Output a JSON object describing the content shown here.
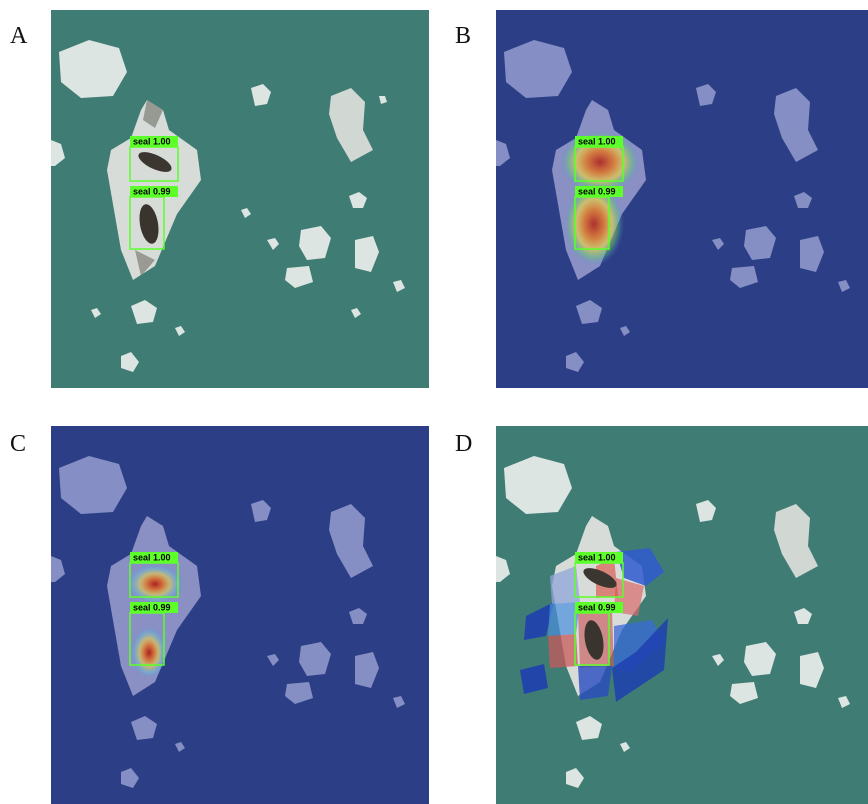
{
  "panels": [
    {
      "label": "A",
      "variant": "original"
    },
    {
      "label": "B",
      "variant": "heatmap-wide"
    },
    {
      "label": "C",
      "variant": "heatmap-focused"
    },
    {
      "label": "D",
      "variant": "segments"
    }
  ],
  "detections": [
    {
      "class": "seal",
      "score": "1.00",
      "text": "seal  1.00"
    },
    {
      "class": "seal",
      "score": "0.99",
      "text": "seal  0.99"
    }
  ],
  "colors": {
    "water": "#3f7d74",
    "water_overlay": "#2a3f86",
    "ice": "#e8ece9",
    "bbox": "#5cff2a",
    "heat_hot": "#c8352a",
    "heat_warm": "#f0c23a",
    "heat_cool": "#4a8fe0",
    "segment_blue": "#1f3fb0",
    "segment_red": "#c85a5a"
  }
}
